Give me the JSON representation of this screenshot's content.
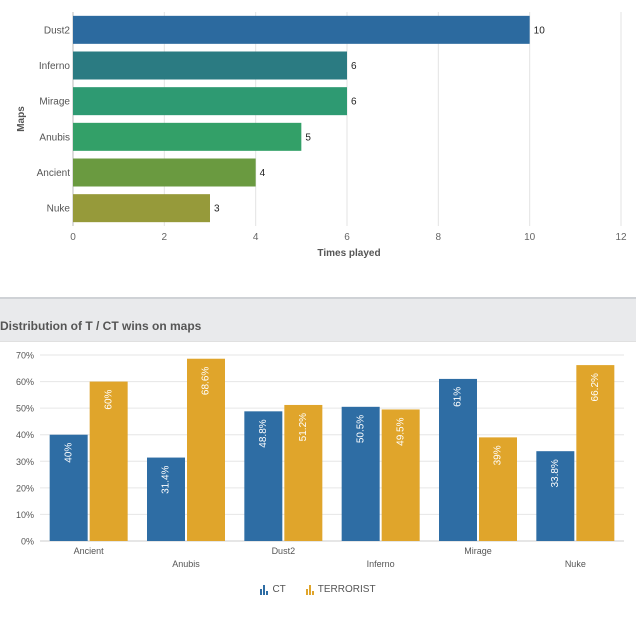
{
  "chart_data": [
    {
      "type": "bar",
      "orientation": "horizontal",
      "categories": [
        "Dust2",
        "Inferno",
        "Mirage",
        "Anubis",
        "Ancient",
        "Nuke"
      ],
      "values": [
        10,
        6,
        6,
        5,
        4,
        3
      ],
      "xlabel": "Times played",
      "ylabel": "Maps",
      "xlim": [
        0,
        12
      ],
      "xticks": [
        0,
        2,
        4,
        6,
        8,
        10,
        12
      ],
      "grid": true,
      "colors": [
        "#2c6a9f",
        "#2b7b82",
        "#2e9a72",
        "#33a068",
        "#6a9a40",
        "#969a3a"
      ]
    },
    {
      "type": "bar",
      "title": "Distribution of T / CT wins on maps",
      "categories": [
        "Ancient",
        "Anubis",
        "Dust2",
        "Inferno",
        "Mirage",
        "Nuke"
      ],
      "series": [
        {
          "name": "CT",
          "values": [
            40,
            31.4,
            48.8,
            50.5,
            61,
            33.8
          ],
          "labels": [
            "40%",
            "31.4%",
            "48.8%",
            "50.5%",
            "61%",
            "33.8%"
          ],
          "color": "#2e6da4"
        },
        {
          "name": "TERRORIST",
          "values": [
            60,
            68.6,
            51.2,
            49.5,
            39,
            66.2
          ],
          "labels": [
            "60%",
            "68.6%",
            "51.2%",
            "49.5%",
            "39%",
            "66.2%"
          ],
          "color": "#e0a52b"
        }
      ],
      "ylim": [
        0,
        70
      ],
      "yticks": [
        "0%",
        "10%",
        "20%",
        "30%",
        "40%",
        "50%",
        "60%",
        "70%"
      ],
      "grid": true,
      "legend": "bottom-center"
    }
  ],
  "legend": {
    "ct": "CT",
    "terrorist": "TERRORIST"
  }
}
